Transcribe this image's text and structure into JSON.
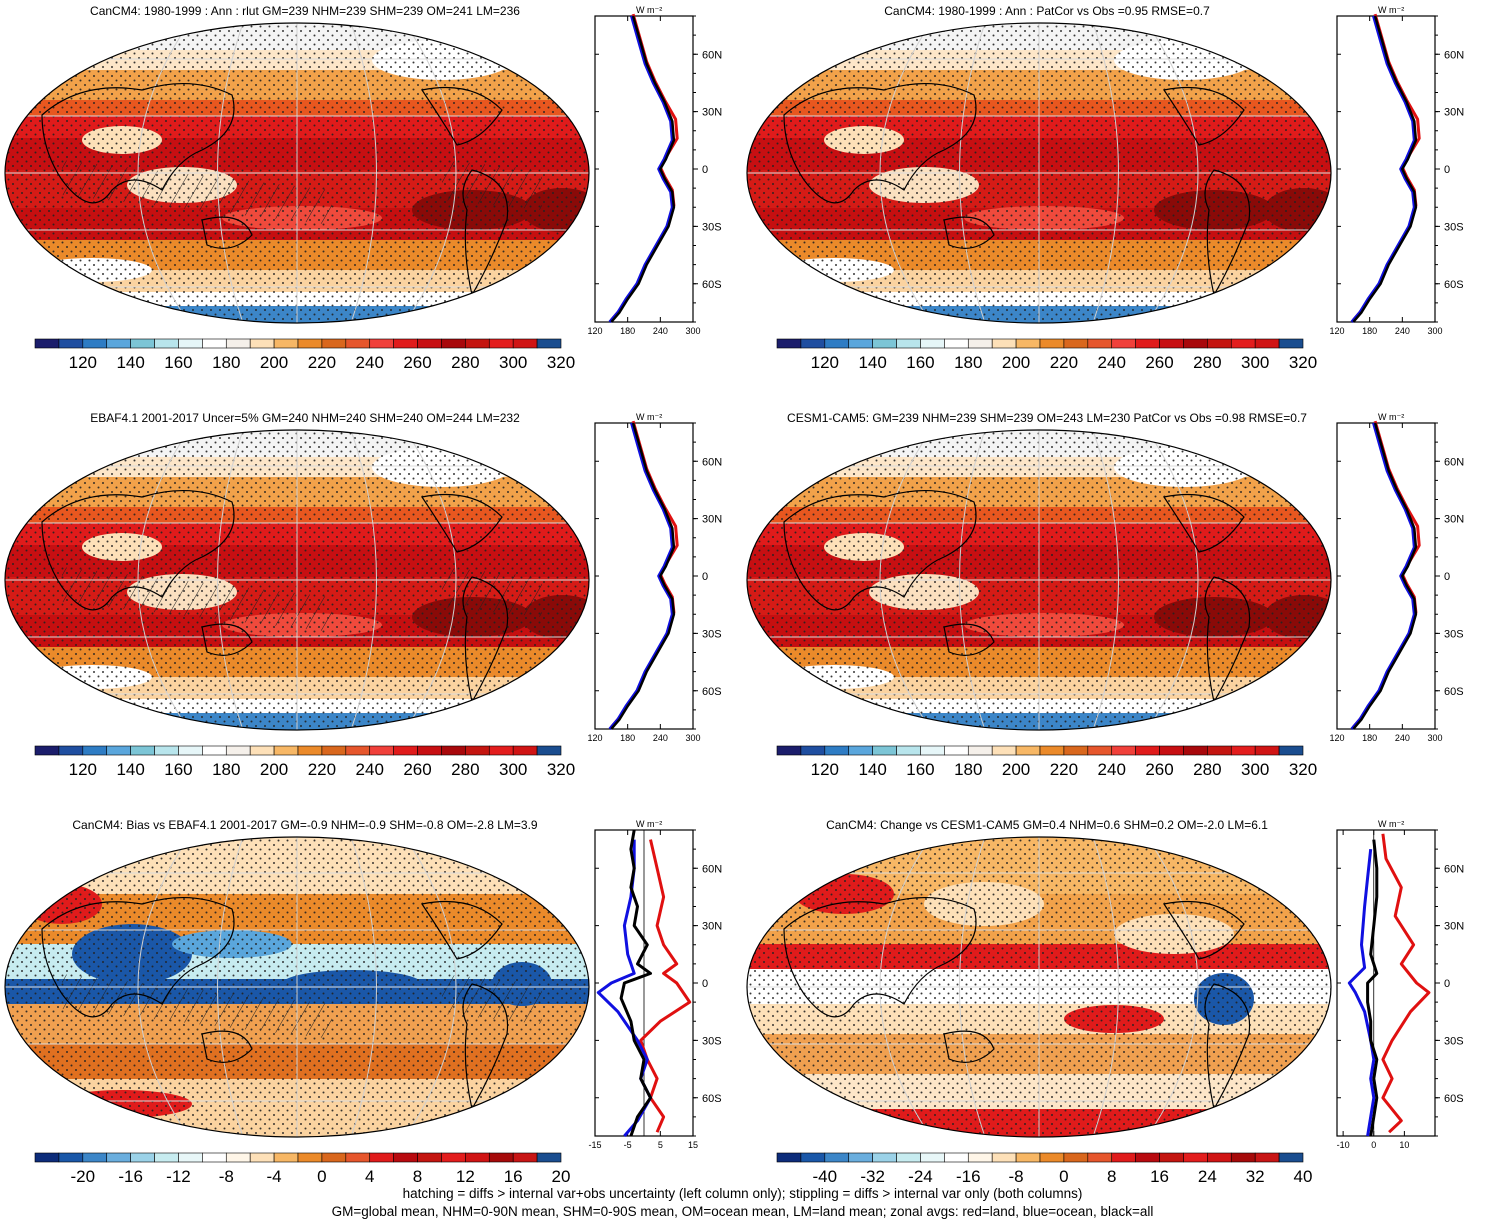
{
  "footer": {
    "line1": "hatching = diffs > internal var+obs uncertainty (left column only); stippling = diffs > internal var only (both columns)",
    "line2": "GM=global mean, NHM=0-90N mean, SHM=0-90S mean, OM=ocean mean, LM=land mean; zonal avgs: red=land, blue=ocean, black=all"
  },
  "zonal_unit": "W m⁻²",
  "lat_labels": [
    "60N",
    "30N",
    "0",
    "30S",
    "60S"
  ],
  "panels": [
    {
      "id": "p1",
      "title": "CanCM4: 1980-1999 : Ann : rlut GM=239 NHM=239 SHM=239 OM=241 LM=236",
      "type": "abs",
      "cbar_ticks": [
        "120",
        "140",
        "160",
        "180",
        "200",
        "220",
        "240",
        "260",
        "280",
        "300",
        "320"
      ],
      "zonal_ticks": [
        "120",
        "180",
        "240",
        "300"
      ],
      "zonal_range": [
        120,
        300
      ],
      "hatch": true
    },
    {
      "id": "p2",
      "title": "CanCM4: 1980-1999 : Ann : PatCor vs Obs =0.95 RMSE=0.7",
      "type": "abs",
      "cbar_ticks": [
        "120",
        "140",
        "160",
        "180",
        "200",
        "220",
        "240",
        "260",
        "280",
        "300",
        "320"
      ],
      "zonal_ticks": [
        "120",
        "180",
        "240",
        "300"
      ],
      "zonal_range": [
        120,
        300
      ],
      "hatch": false
    },
    {
      "id": "p3",
      "title": "EBAF4.1 2001-2017 Uncer=5% GM=240 NHM=240 SHM=240 OM=244 LM=232",
      "type": "abs",
      "cbar_ticks": [
        "120",
        "140",
        "160",
        "180",
        "200",
        "220",
        "240",
        "260",
        "280",
        "300",
        "320"
      ],
      "zonal_ticks": [
        "120",
        "180",
        "240",
        "300"
      ],
      "zonal_range": [
        120,
        300
      ],
      "hatch": true
    },
    {
      "id": "p4",
      "title": "CESM1-CAM5: GM=239 NHM=239 SHM=239 OM=243 LM=230 PatCor vs Obs =0.98 RMSE=0.7",
      "type": "abs",
      "cbar_ticks": [
        "120",
        "140",
        "160",
        "180",
        "200",
        "220",
        "240",
        "260",
        "280",
        "300",
        "320"
      ],
      "zonal_ticks": [
        "120",
        "180",
        "240",
        "300"
      ],
      "zonal_range": [
        120,
        300
      ],
      "hatch": false
    },
    {
      "id": "p5",
      "title": "CanCM4: Bias vs EBAF4.1 2001-2017 GM=-0.9 NHM=-0.9 SHM=-0.8 OM=-2.8 LM=3.9",
      "type": "diff",
      "cbar_ticks": [
        "-20",
        "-16",
        "-12",
        "-8",
        "-4",
        "0",
        "4",
        "8",
        "12",
        "16",
        "20"
      ],
      "zonal_ticks": [
        "-15",
        "-5",
        "5",
        "15"
      ],
      "zonal_range": [
        -15,
        15
      ],
      "hatch": true
    },
    {
      "id": "p6",
      "title": "CanCM4: Change vs CESM1-CAM5 GM=0.4 NHM=0.6 SHM=0.2 OM=-2.0 LM=6.1",
      "type": "diff",
      "cbar_ticks": [
        "-40",
        "-32",
        "-24",
        "-16",
        "-8",
        "0",
        "8",
        "16",
        "24",
        "32",
        "40"
      ],
      "zonal_ticks": [
        "-10",
        "0",
        "10"
      ],
      "zonal_range": [
        -12,
        20
      ],
      "hatch": false
    }
  ],
  "chart_data": {
    "type": "heatmap",
    "description_units": "W m-2",
    "colors_abs": [
      "#1b1d6b",
      "#1f4ea0",
      "#2e7cc4",
      "#5aa6dc",
      "#8fd0d9",
      "#c7ecf0",
      "#ffffff",
      "#f1f1f1",
      "#fde0b8",
      "#f7b765",
      "#eb8a2a",
      "#d9671d",
      "#f04a3c",
      "#e01b1b",
      "#c70f12",
      "#a8080b",
      "#8a0a08",
      "#c91510",
      "#e31d1d",
      "#d01010",
      "#c01010",
      "#1a4d8f"
    ],
    "zonal_profiles": {
      "abs_black": [
        [
          150,
          -80
        ],
        [
          165,
          -75
        ],
        [
          180,
          -68
        ],
        [
          200,
          -60
        ],
        [
          215,
          -50
        ],
        [
          235,
          -40
        ],
        [
          255,
          -30
        ],
        [
          265,
          -20
        ],
        [
          262,
          -12
        ],
        [
          248,
          -5
        ],
        [
          240,
          0
        ],
        [
          250,
          5
        ],
        [
          265,
          15
        ],
        [
          262,
          25
        ],
        [
          248,
          35
        ],
        [
          230,
          45
        ],
        [
          215,
          55
        ],
        [
          205,
          65
        ],
        [
          195,
          75
        ],
        [
          190,
          80
        ]
      ],
      "diff_p5_black": [
        [
          -4,
          -80
        ],
        [
          -2,
          -70
        ],
        [
          2,
          -60
        ],
        [
          -1,
          -50
        ],
        [
          0,
          -40
        ],
        [
          -3,
          -30
        ],
        [
          -4,
          -20
        ],
        [
          -7,
          -8
        ],
        [
          -6,
          0
        ],
        [
          2,
          5
        ],
        [
          -2,
          10
        ],
        [
          1,
          20
        ],
        [
          -3,
          30
        ],
        [
          -2,
          40
        ],
        [
          -4,
          50
        ],
        [
          -3,
          60
        ],
        [
          -4,
          70
        ],
        [
          -3,
          80
        ]
      ],
      "diff_p5_blue": [
        [
          -6,
          -80
        ],
        [
          -2,
          -72
        ],
        [
          2,
          -60
        ],
        [
          -1,
          -50
        ],
        [
          1,
          -40
        ],
        [
          -2,
          -30
        ],
        [
          -8,
          -15
        ],
        [
          -14,
          -5
        ],
        [
          -10,
          0
        ],
        [
          -3,
          5
        ],
        [
          -5,
          15
        ],
        [
          -6,
          30
        ],
        [
          -4,
          45
        ],
        [
          -3,
          60
        ],
        [
          -3,
          75
        ]
      ],
      "diff_p5_red": [
        [
          4,
          -78
        ],
        [
          6,
          -70
        ],
        [
          2,
          -60
        ],
        [
          4,
          -50
        ],
        [
          1,
          -40
        ],
        [
          -1,
          -30
        ],
        [
          5,
          -20
        ],
        [
          14,
          -10
        ],
        [
          10,
          0
        ],
        [
          6,
          5
        ],
        [
          10,
          10
        ],
        [
          6,
          20
        ],
        [
          4,
          30
        ],
        [
          6,
          45
        ],
        [
          4,
          60
        ],
        [
          2,
          75
        ]
      ],
      "diff_p6_black": [
        [
          -1,
          -80
        ],
        [
          0,
          -70
        ],
        [
          1,
          -60
        ],
        [
          0,
          -50
        ],
        [
          1,
          -40
        ],
        [
          -1,
          -30
        ],
        [
          -1,
          -20
        ],
        [
          -2,
          -10
        ],
        [
          -2,
          0
        ],
        [
          1,
          5
        ],
        [
          -1,
          15
        ],
        [
          0,
          30
        ],
        [
          1,
          45
        ],
        [
          1,
          60
        ],
        [
          0,
          75
        ]
      ],
      "diff_p6_blue": [
        [
          -2,
          -80
        ],
        [
          -1,
          -70
        ],
        [
          0,
          -60
        ],
        [
          -1,
          -50
        ],
        [
          0,
          -40
        ],
        [
          -1,
          -30
        ],
        [
          -3,
          -15
        ],
        [
          -6,
          -5
        ],
        [
          -8,
          0
        ],
        [
          -3,
          8
        ],
        [
          -4,
          20
        ],
        [
          -3,
          40
        ],
        [
          -2,
          55
        ],
        [
          -1,
          70
        ]
      ],
      "diff_p6_red": [
        [
          5,
          -78
        ],
        [
          9,
          -72
        ],
        [
          3,
          -60
        ],
        [
          6,
          -50
        ],
        [
          3,
          -40
        ],
        [
          6,
          -30
        ],
        [
          12,
          -15
        ],
        [
          18,
          -5
        ],
        [
          14,
          0
        ],
        [
          9,
          10
        ],
        [
          13,
          20
        ],
        [
          7,
          35
        ],
        [
          9,
          50
        ],
        [
          4,
          65
        ],
        [
          3,
          78
        ]
      ]
    }
  }
}
